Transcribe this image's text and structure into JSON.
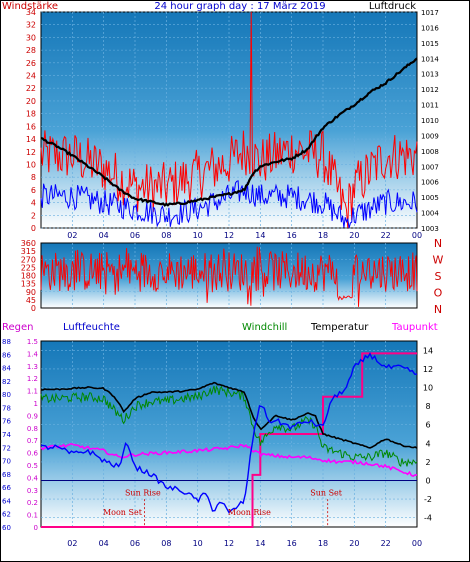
{
  "chart_data": [
    {
      "type": "line",
      "title": "24 hour graph day : 17 März 2019",
      "left_axis_label": "Windstärke",
      "right_axis_label": "Luftdruck",
      "left_ylim": [
        0,
        34
      ],
      "left_ticks": [
        0,
        2,
        4,
        6,
        8,
        10,
        12,
        14,
        16,
        18,
        20,
        22,
        24,
        26,
        28,
        30,
        32,
        34
      ],
      "right_ylim": [
        1003,
        1017
      ],
      "right_ticks": [
        1003,
        1004,
        1005,
        1006,
        1007,
        1008,
        1009,
        1010,
        1011,
        1012,
        1013,
        1014,
        1015,
        1016,
        1017
      ],
      "x_tick_labels": [
        "02",
        "04",
        "06",
        "08",
        "10",
        "12",
        "14",
        "16",
        "18",
        "20",
        "22",
        "00"
      ],
      "gust_profile": {
        "hours": [
          0,
          2,
          4,
          6,
          8,
          10,
          12,
          13,
          14,
          16,
          18,
          19.5,
          20,
          22,
          24
        ],
        "values": [
          11,
          11,
          9,
          6,
          6,
          8,
          10,
          12,
          10,
          12,
          11,
          2,
          6,
          11,
          11
        ]
      },
      "gust_peak": {
        "hour": 13.4,
        "value": 34
      },
      "wind_profile": {
        "hours": [
          0,
          2,
          4,
          6,
          8,
          10,
          12,
          13,
          14,
          16,
          18,
          19.5,
          20,
          22,
          24
        ],
        "values": [
          5,
          5,
          4,
          3,
          2,
          3,
          5,
          6,
          5,
          5,
          4,
          1,
          2,
          4,
          4
        ]
      },
      "pressure": {
        "hours": [
          0,
          1,
          2,
          3,
          4,
          5,
          6,
          7,
          8,
          9,
          10,
          11,
          12,
          13,
          13.5,
          14,
          15,
          16,
          17,
          18,
          19,
          20,
          21,
          22,
          23,
          24
        ],
        "values": [
          1008.8,
          1008.3,
          1007.7,
          1007.0,
          1006.3,
          1005.5,
          1004.9,
          1004.7,
          1004.5,
          1004.6,
          1004.8,
          1005.0,
          1005.2,
          1005.5,
          1006.5,
          1007.0,
          1007.3,
          1007.5,
          1008.1,
          1009.5,
          1010.3,
          1011.0,
          1011.8,
          1012.4,
          1013.2,
          1014.0
        ]
      }
    },
    {
      "type": "scatter",
      "ylim": [
        0,
        360
      ],
      "y_ticks": [
        0,
        45,
        90,
        135,
        180,
        225,
        270,
        315,
        360
      ],
      "direction_labels": [
        "N",
        "W",
        "S",
        "O",
        "N"
      ],
      "x_tick_labels": [
        "02",
        "04",
        "06",
        "08",
        "10",
        "12",
        "14",
        "16",
        "18",
        "20",
        "22",
        "00"
      ],
      "direction_band": [
        90,
        315
      ]
    },
    {
      "type": "line",
      "legend": [
        "Regen",
        "Luftfeuchte",
        "Windchill",
        "Temperatur",
        "Taupunkt"
      ],
      "rain_ylim": [
        0,
        1.5
      ],
      "rain_ticks": [
        0,
        0.1,
        0.2,
        0.3,
        0.4,
        0.5,
        0.6,
        0.7,
        0.8,
        0.9,
        1,
        1.1,
        1.2,
        1.3,
        1.4,
        1.5
      ],
      "humidity_ylim": [
        60,
        88
      ],
      "humidity_ticks": [
        60,
        62,
        64,
        66,
        68,
        70,
        72,
        74,
        76,
        78,
        80,
        82,
        84,
        86,
        88
      ],
      "temp_ylim": [
        -5,
        15
      ],
      "temp_ticks": [
        -4,
        -2,
        0,
        2,
        4,
        6,
        8,
        10,
        12,
        14
      ],
      "x_tick_labels": [
        "02",
        "04",
        "06",
        "08",
        "10",
        "12",
        "14",
        "16",
        "18",
        "20",
        "22",
        "00"
      ],
      "temperature": {
        "hours": [
          0,
          1,
          2,
          3,
          4,
          4.7,
          5.3,
          6,
          7,
          8,
          9,
          10,
          11,
          12,
          13,
          13.5,
          14,
          15,
          16,
          17,
          17.5,
          18,
          19,
          20,
          21,
          22,
          23,
          24
        ],
        "values": [
          9.8,
          9.8,
          9.9,
          10.0,
          9.9,
          9.0,
          7.4,
          8.8,
          9.5,
          9.5,
          9.6,
          9.8,
          10.5,
          10.0,
          9.5,
          7.0,
          5.5,
          7.0,
          6.5,
          7.2,
          7.0,
          5.0,
          4.5,
          4.0,
          3.5,
          4.5,
          3.8,
          3.5
        ]
      },
      "windchill": {
        "hours": [
          0,
          1,
          2,
          3,
          4,
          4.7,
          5.3,
          6,
          7,
          8,
          9,
          10,
          11,
          12,
          13,
          13.5,
          14,
          15,
          16,
          17,
          17.5,
          18,
          19,
          20,
          21,
          22,
          23,
          24
        ],
        "values": [
          8.8,
          8.8,
          8.9,
          9.0,
          8.8,
          7.5,
          6.5,
          8.0,
          8.5,
          8.5,
          8.8,
          9.0,
          9.8,
          9.5,
          9.0,
          6.0,
          4.0,
          6.0,
          5.5,
          6.5,
          6.0,
          3.5,
          3.0,
          2.5,
          2.5,
          3.0,
          2.0,
          2.0
        ]
      },
      "dewpoint": {
        "hours": [
          0,
          2,
          4,
          5,
          6,
          8,
          10,
          12,
          13,
          14,
          16,
          17,
          18,
          19,
          20,
          21,
          22,
          23,
          24
        ],
        "values": [
          3.5,
          3.8,
          3.2,
          2.5,
          2.8,
          3.0,
          3.2,
          3.5,
          3.8,
          2.8,
          2.5,
          2.5,
          2.2,
          2.0,
          2.0,
          1.8,
          1.5,
          1.0,
          0.5
        ]
      },
      "humidity": {
        "hours": [
          0,
          1,
          2,
          3,
          4,
          5,
          5.5,
          6,
          7,
          8,
          9,
          10,
          10.5,
          11,
          11.5,
          12,
          12.5,
          13,
          13.5,
          14,
          14.5,
          15,
          16,
          17,
          18,
          18.5,
          19,
          19.5,
          20,
          21,
          22,
          23,
          24
        ],
        "values": [
          72,
          72,
          71,
          71.5,
          70,
          69,
          73,
          69,
          68,
          66,
          65.5,
          64,
          65,
          62.5,
          64,
          62,
          63,
          64,
          73,
          79,
          76,
          76,
          75,
          76,
          75,
          79,
          80,
          81,
          84,
          86,
          84,
          84,
          83
        ]
      },
      "rain_steps": {
        "hours": [
          0,
          13.5,
          14,
          18,
          20.5,
          24
        ],
        "values": [
          0,
          0.42,
          0.75,
          1.05,
          1.4,
          1.4
        ]
      },
      "annotations": [
        {
          "text": "Moon Set",
          "hour": 5.2,
          "y_frac": 0.935,
          "color": "#cc0000"
        },
        {
          "text": "Sun Rise",
          "hour": 6.5,
          "y_frac": 0.83,
          "color": "#cc0000"
        },
        {
          "text": "Moon Rise",
          "hour": 13.3,
          "y_frac": 0.935,
          "color": "#cc0000"
        },
        {
          "text": "Sun Set",
          "hour": 18.2,
          "y_frac": 0.83,
          "color": "#cc0000"
        }
      ]
    }
  ],
  "colors": {
    "gust": "#ff0000",
    "wind": "#0000ff",
    "pressure": "#000000",
    "temperature": "#000000",
    "windchill": "#008800",
    "dewpoint": "#ff00ff",
    "humidity": "#0000ff",
    "rain": "#ff0088",
    "direction": "#ff0000"
  }
}
